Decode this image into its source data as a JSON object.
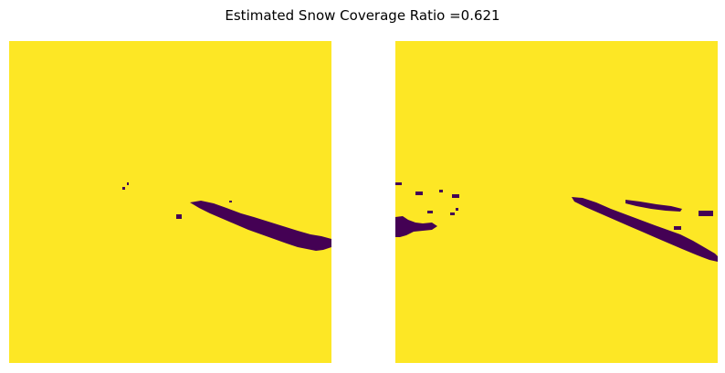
{
  "figure": {
    "title": "Estimated Snow Coverage Ratio =0.621"
  },
  "colors": {
    "snow": "#fde725",
    "no_snow": "#440154",
    "background": "#ffffff"
  },
  "panels": [
    {
      "name": "left-mask",
      "description_visible": false
    },
    {
      "name": "right-mask",
      "description_visible": false
    }
  ]
}
